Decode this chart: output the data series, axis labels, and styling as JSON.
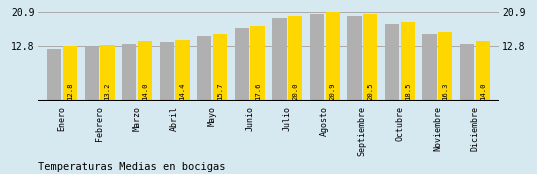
{
  "months": [
    "Enero",
    "Febrero",
    "Marzo",
    "Abril",
    "Mayo",
    "Junio",
    "Julio",
    "Agosto",
    "Septiembre",
    "Octubre",
    "Noviembre",
    "Diciembre"
  ],
  "yellow_values": [
    12.8,
    13.2,
    14.0,
    14.4,
    15.7,
    17.6,
    20.0,
    20.9,
    20.5,
    18.5,
    16.3,
    14.0
  ],
  "gray_values": [
    12.3,
    12.7,
    13.5,
    13.9,
    15.2,
    17.1,
    19.5,
    20.4,
    20.0,
    18.0,
    15.8,
    13.5
  ],
  "yellow_color": "#FFD700",
  "gray_color": "#B0B0B0",
  "bg_color": "#D6E8F0",
  "title": "Temperaturas Medias en bocigas",
  "yticks": [
    12.8,
    20.9
  ],
  "ylim_min": 0,
  "ylim_max": 22.5,
  "hline_color": "#AAAAAA",
  "title_fontsize": 7.5,
  "tick_fontsize": 7,
  "label_fontsize": 6,
  "value_fontsize": 5.2,
  "bar_width": 0.38
}
